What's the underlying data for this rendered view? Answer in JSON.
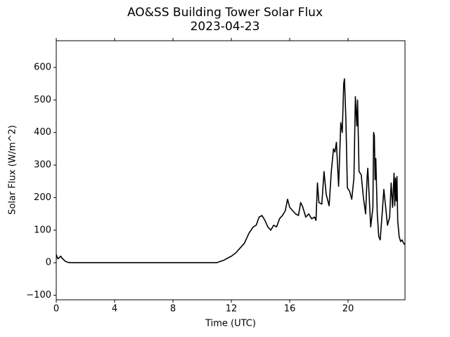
{
  "chart_data": {
    "type": "line",
    "title": "AO&SS Building Tower Solar Flux",
    "subtitle": "2023-04-23",
    "x_label": "Time (UTC)",
    "y_label": "Solar Flux (W/m^2)",
    "xlim": [
      0,
      23.9
    ],
    "ylim": [
      -114,
      682
    ],
    "xticks": [
      0,
      4,
      8,
      12,
      16,
      20
    ],
    "yticks": [
      {
        "value": -100,
        "label": "−100"
      },
      0,
      100,
      200,
      300,
      400,
      500,
      600
    ],
    "series": [
      {
        "name": "Solar Flux",
        "color": "#000000",
        "x": [
          0,
          0.1,
          0.2,
          0.3,
          0.4,
          0.6,
          0.8,
          1,
          11,
          11.5,
          12,
          12.3,
          12.6,
          12.9,
          13.2,
          13.5,
          13.7,
          13.9,
          14.1,
          14.3,
          14.5,
          14.7,
          14.9,
          15.1,
          15.3,
          15.5,
          15.7,
          15.85,
          16,
          16.2,
          16.4,
          16.6,
          16.75,
          16.9,
          17.1,
          17.3,
          17.5,
          17.7,
          17.8,
          17.9,
          18,
          18.2,
          18.35,
          18.5,
          18.7,
          18.85,
          19,
          19.1,
          19.2,
          19.35,
          19.5,
          19.6,
          19.7,
          19.75,
          19.85,
          19.95,
          20.1,
          20.25,
          20.4,
          20.5,
          20.6,
          20.65,
          20.75,
          20.9,
          21.05,
          21.2,
          21.3,
          21.35,
          21.45,
          21.55,
          21.7,
          21.75,
          21.8,
          21.85,
          21.9,
          22,
          22.1,
          22.2,
          22.35,
          22.45,
          22.6,
          22.7,
          22.85,
          22.95,
          23.05,
          23.15,
          23.2,
          23.25,
          23.3,
          23.35,
          23.4,
          23.5,
          23.6,
          23.7,
          23.8,
          23.9
        ],
        "values": [
          25,
          12,
          15,
          20,
          14,
          5,
          1,
          0,
          0,
          8,
          20,
          30,
          45,
          60,
          90,
          110,
          115,
          140,
          145,
          130,
          110,
          100,
          115,
          110,
          135,
          145,
          160,
          195,
          170,
          160,
          150,
          145,
          185,
          170,
          140,
          150,
          135,
          140,
          130,
          245,
          185,
          180,
          280,
          210,
          175,
          280,
          350,
          340,
          370,
          235,
          430,
          400,
          550,
          565,
          440,
          230,
          220,
          195,
          260,
          510,
          420,
          500,
          280,
          270,
          200,
          150,
          260,
          290,
          200,
          110,
          170,
          400,
          390,
          255,
          320,
          150,
          80,
          70,
          160,
          225,
          160,
          115,
          140,
          245,
          170,
          275,
          175,
          260,
          190,
          265,
          130,
          80,
          65,
          70,
          60,
          55
        ]
      }
    ]
  }
}
